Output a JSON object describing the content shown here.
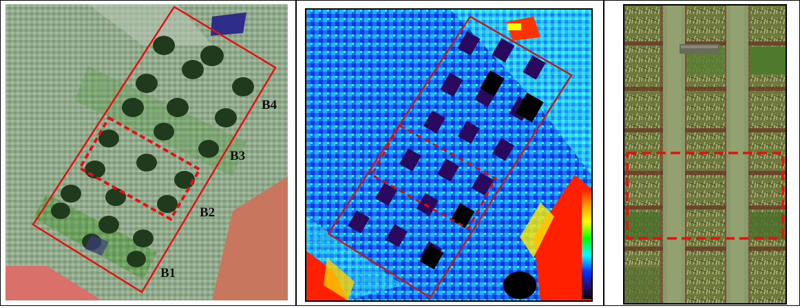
{
  "figure": {
    "panels": [
      {
        "id": "rgb-composite",
        "block_labels": [
          "B1",
          "B2",
          "B3",
          "B4"
        ]
      },
      {
        "id": "index-map",
        "colorbar_colors": [
          "#ff1a00",
          "#ff9900",
          "#ffff00",
          "#00ff00",
          "#00ffff",
          "#0033ff",
          "#2a0a5e",
          "#000000"
        ]
      },
      {
        "id": "aerial-photo"
      }
    ],
    "colors": {
      "outline": "#e41010",
      "dashed": "#e41010"
    }
  }
}
